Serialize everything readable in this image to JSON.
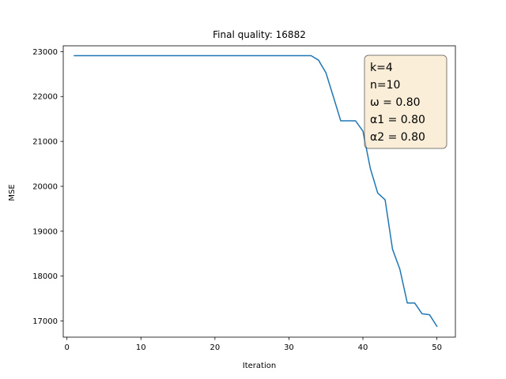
{
  "chart_data": {
    "type": "line",
    "title": "Final quality: 16882",
    "xlabel": "Iteration",
    "ylabel": "MSE",
    "xlim": [
      -0.5,
      52.5
    ],
    "ylim": [
      16640,
      23130
    ],
    "xticks": [
      0,
      10,
      20,
      30,
      40,
      50
    ],
    "yticks": [
      17000,
      18000,
      19000,
      20000,
      21000,
      22000,
      23000
    ],
    "grid": false,
    "series": [
      {
        "color": "#1f77b4",
        "x": [
          1,
          2,
          3,
          4,
          5,
          6,
          7,
          8,
          9,
          10,
          11,
          12,
          13,
          14,
          15,
          16,
          17,
          18,
          19,
          20,
          21,
          22,
          23,
          24,
          25,
          26,
          27,
          28,
          29,
          30,
          31,
          32,
          33,
          34,
          35,
          36,
          37,
          38,
          39,
          40,
          41,
          42,
          43,
          44,
          45,
          46,
          47,
          48,
          49,
          50
        ],
        "y": [
          22910,
          22910,
          22910,
          22910,
          22910,
          22910,
          22910,
          22910,
          22910,
          22910,
          22910,
          22910,
          22910,
          22910,
          22910,
          22910,
          22910,
          22910,
          22910,
          22910,
          22910,
          22910,
          22910,
          22910,
          22910,
          22910,
          22910,
          22910,
          22910,
          22910,
          22910,
          22910,
          22910,
          22810,
          22530,
          22000,
          21460,
          21460,
          21460,
          21230,
          20400,
          19850,
          19700,
          18600,
          18150,
          17400,
          17400,
          17160,
          17140,
          16882
        ]
      }
    ],
    "annotation": {
      "lines": [
        "k=4",
        "n=10",
        "ω = 0.80",
        "α1 = 0.80",
        "α2 = 0.80"
      ],
      "placement": "top-right",
      "facecolor": "#f5deb3",
      "edgecolor": "#000000"
    }
  }
}
